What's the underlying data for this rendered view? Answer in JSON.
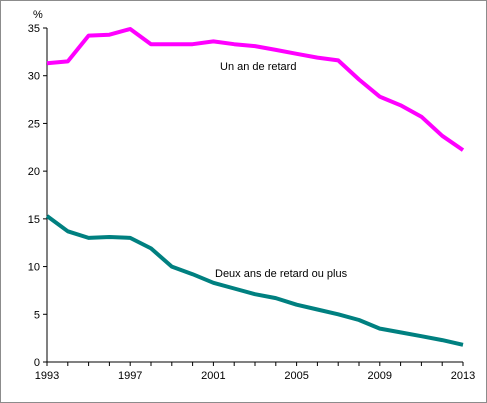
{
  "chart_data": {
    "type": "line",
    "y_unit": "%",
    "xlim": [
      1993,
      2013
    ],
    "ylim": [
      0,
      35
    ],
    "x_ticks": [
      1993,
      1997,
      2001,
      2005,
      2009,
      2013
    ],
    "y_ticks": [
      0,
      5,
      10,
      15,
      20,
      25,
      30,
      35
    ],
    "grid": false,
    "x": [
      1993,
      1994,
      1995,
      1996,
      1997,
      1998,
      1999,
      2000,
      2001,
      2002,
      2003,
      2004,
      2005,
      2006,
      2007,
      2008,
      2009,
      2010,
      2011,
      2012,
      2013
    ],
    "series": [
      {
        "name": "Un an de retard",
        "color": "#ff00ff",
        "values": [
          31.3,
          31.5,
          34.2,
          34.3,
          34.9,
          33.3,
          33.3,
          33.3,
          33.6,
          33.3,
          33.1,
          32.7,
          32.3,
          31.9,
          31.6,
          29.6,
          27.8,
          26.9,
          25.7,
          23.7,
          22.2
        ]
      },
      {
        "name": "Deux ans de retard ou plus",
        "color": "#008080",
        "values": [
          15.3,
          13.7,
          13.0,
          13.1,
          13.0,
          11.9,
          10.0,
          9.2,
          8.3,
          7.7,
          7.1,
          6.7,
          6.0,
          5.5,
          5.0,
          4.4,
          3.5,
          3.1,
          2.7,
          2.3,
          1.8
        ]
      }
    ]
  }
}
